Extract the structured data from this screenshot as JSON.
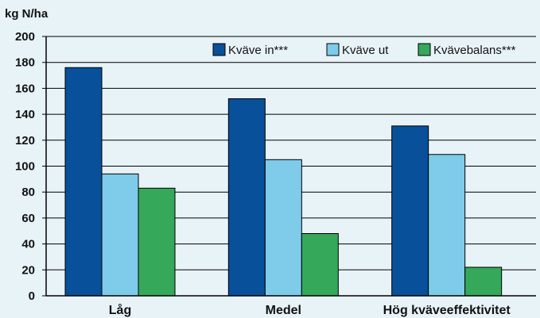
{
  "chart_data": {
    "type": "bar",
    "ylabel": "kg N/ha",
    "ylim": [
      0,
      200
    ],
    "yticks": [
      0,
      20,
      40,
      60,
      80,
      100,
      120,
      140,
      160,
      180,
      200
    ],
    "grid": true,
    "legend_position": "top-right",
    "categories": [
      "Låg",
      "Medel",
      "Hög kväveeffektivitet"
    ],
    "series": [
      {
        "name": "Kväve in***",
        "color": "#08509a",
        "values": [
          176,
          152,
          131
        ]
      },
      {
        "name": "Kväve ut",
        "color": "#7ecbea",
        "values": [
          94,
          105,
          109
        ]
      },
      {
        "name": "Kvävebalans***",
        "color": "#35a85a",
        "values": [
          83,
          48,
          22
        ]
      }
    ]
  }
}
